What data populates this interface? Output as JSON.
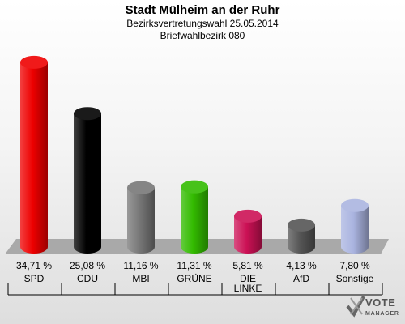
{
  "header": {
    "title": "Stadt Mülheim an der Ruhr",
    "subtitle": "Bezirksvertretungswahl 25.05.2014",
    "subtitle2": "Briefwahlbezirk 080"
  },
  "logo": {
    "word1": "VOTE",
    "word2": "MANAGER"
  },
  "chart_data": {
    "type": "bar",
    "categories": [
      "SPD",
      "CDU",
      "MBI",
      "GRÜNE",
      "DIE LINKE",
      "AfD",
      "Sonstige"
    ],
    "value_labels": [
      "34,71 %",
      "25,08 %",
      "11,16 %",
      "11,31 %",
      "5,81 %",
      "4,13 %",
      "7,80 %"
    ],
    "values": [
      34.71,
      25.08,
      11.16,
      11.31,
      5.81,
      4.13,
      7.8
    ],
    "colors": [
      "#ee0000",
      "#000000",
      "#777777",
      "#33bb00",
      "#cc1155",
      "#555555",
      "#aab4e0"
    ],
    "ylim": [
      0,
      35
    ],
    "grid": false
  }
}
